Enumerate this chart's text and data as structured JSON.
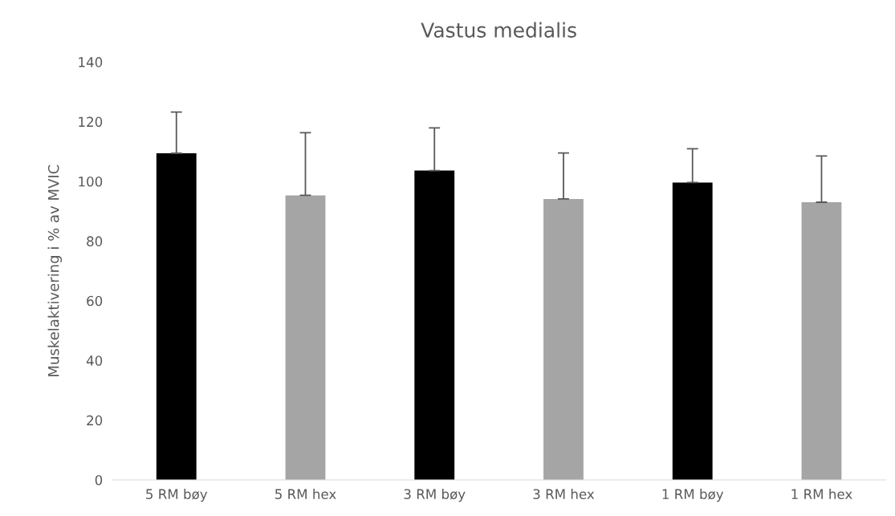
{
  "chart_data": {
    "type": "bar",
    "title": "Vastus medialis",
    "ylabel": "Muskelaktivering i % av MVIC",
    "categories": [
      "5 RM bøy",
      "5 RM hex",
      "3 RM bøy",
      "3 RM hex",
      "1 RM bøy",
      "1 RM hex"
    ],
    "values": [
      109.4,
      95.3,
      103.6,
      94.1,
      99.6,
      93.0
    ],
    "colors": [
      "#000000",
      "#a5a5a5",
      "#000000",
      "#a5a5a5",
      "#000000",
      "#a5a5a5"
    ],
    "errors": [
      [
        109.4,
        123.2
      ],
      [
        95.3,
        116.3
      ],
      [
        103.6,
        117.9
      ],
      [
        94.1,
        109.5
      ],
      [
        99.6,
        110.9
      ],
      [
        93.0,
        108.5
      ]
    ],
    "ylim": [
      0,
      140
    ],
    "yticks": [
      0,
      20,
      40,
      60,
      80,
      100,
      120,
      140
    ],
    "grid": false
  }
}
